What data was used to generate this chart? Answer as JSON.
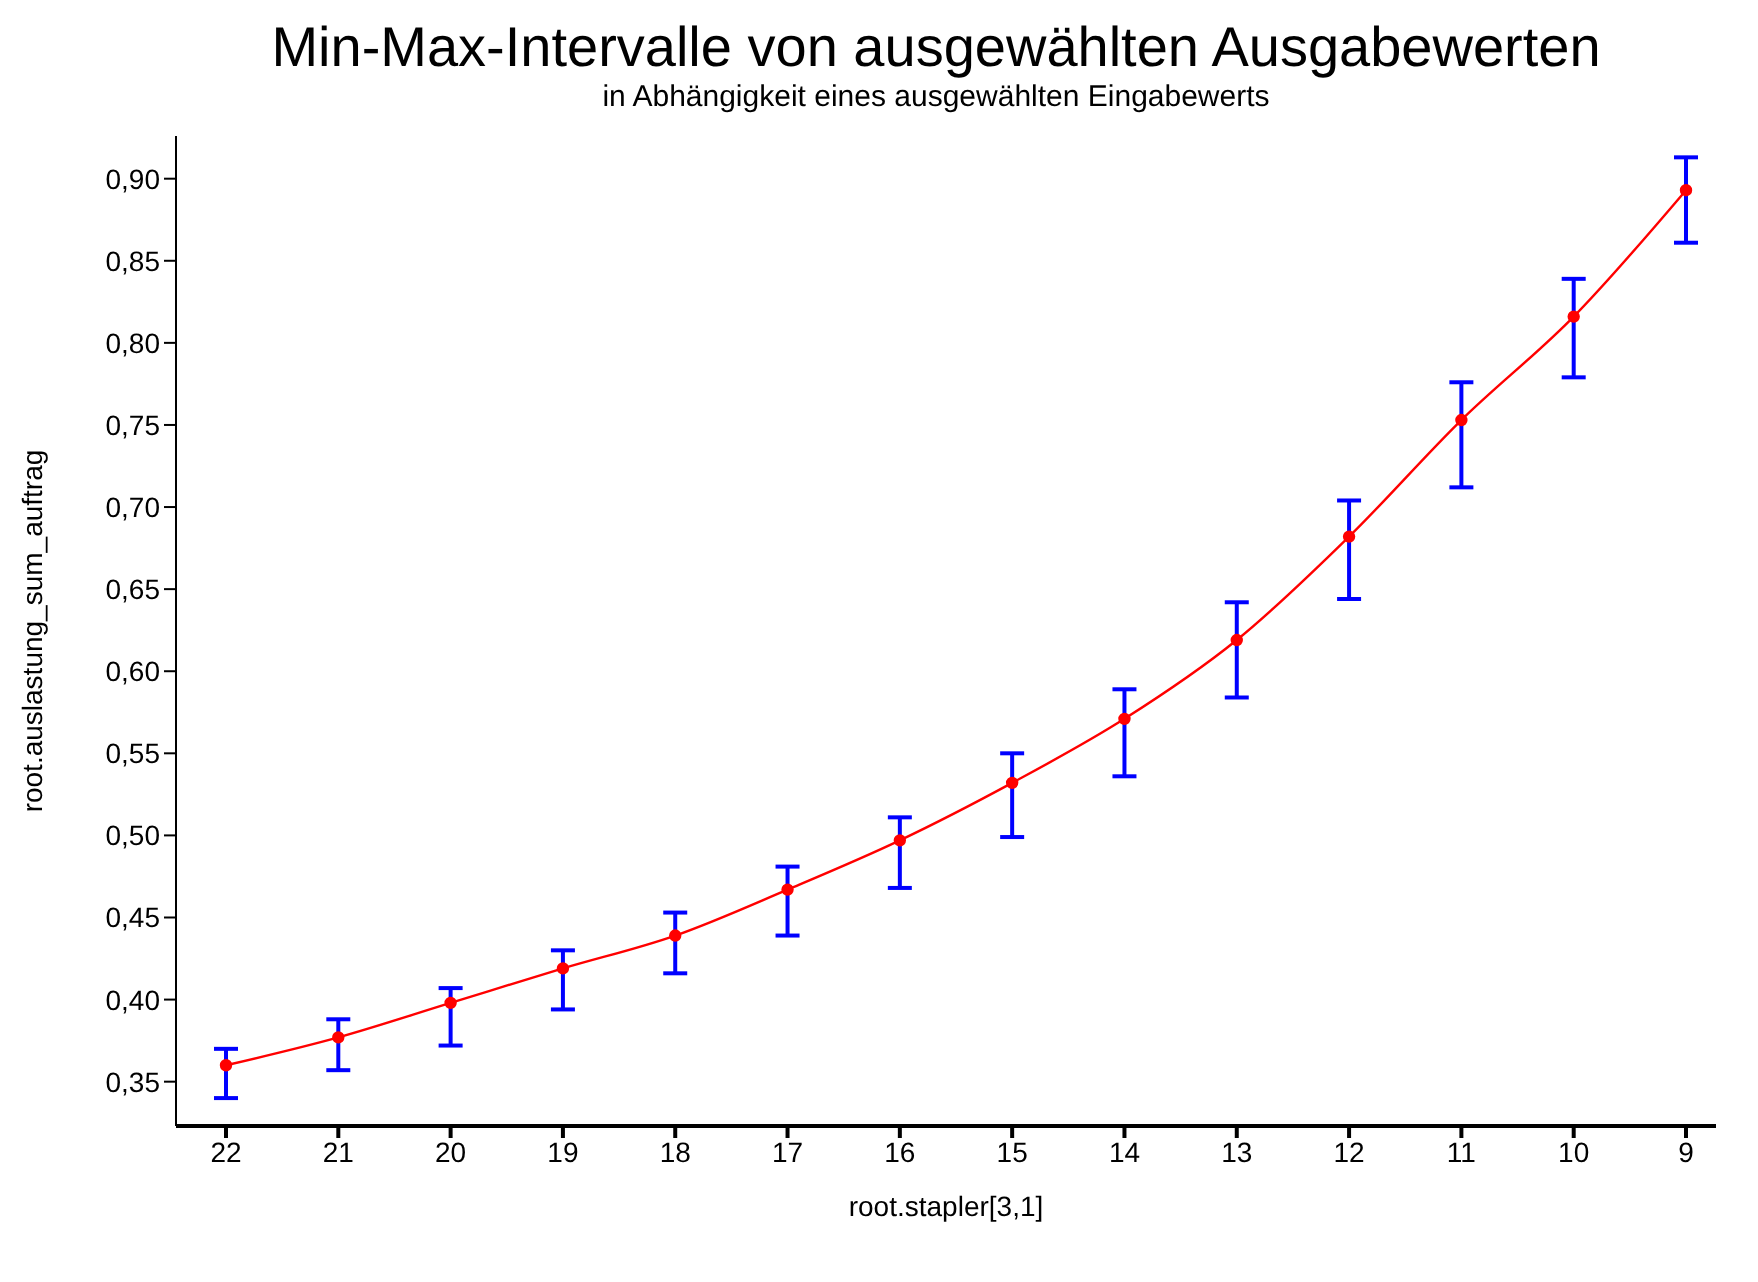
{
  "chart_data": {
    "type": "line",
    "title": "Min-Max-Intervalle von ausgewählten Ausgabewerten",
    "subtitle": "in Abhängigkeit eines ausgewählten Eingabewerts",
    "xlabel": "root.stapler[3,1]",
    "ylabel": "root.auslastung_sum_auftrag",
    "categories": [
      "22",
      "21",
      "20",
      "19",
      "18",
      "17",
      "16",
      "15",
      "14",
      "13",
      "12",
      "11",
      "10",
      "9"
    ],
    "series": [
      {
        "color": "#ff0000",
        "values": [
          0.36,
          0.377,
          0.398,
          0.419,
          0.439,
          0.467,
          0.497,
          0.532,
          0.571,
          0.619,
          0.682,
          0.753,
          0.816,
          0.893
        ],
        "errors": [
          [
            0.34,
            0.37
          ],
          [
            0.357,
            0.388
          ],
          [
            0.372,
            0.407
          ],
          [
            0.394,
            0.43
          ],
          [
            0.416,
            0.453
          ],
          [
            0.439,
            0.481
          ],
          [
            0.468,
            0.511
          ],
          [
            0.499,
            0.55
          ],
          [
            0.536,
            0.589
          ],
          [
            0.584,
            0.642
          ],
          [
            0.644,
            0.704
          ],
          [
            0.712,
            0.776
          ],
          [
            0.779,
            0.839
          ],
          [
            0.861,
            0.913
          ]
        ]
      }
    ],
    "ylim": [
      0.323,
      0.926
    ],
    "yticks": [
      {
        "value": 0.35,
        "label": "0,35"
      },
      {
        "value": 0.4,
        "label": "0,40"
      },
      {
        "value": 0.45,
        "label": "0,45"
      },
      {
        "value": 0.5,
        "label": "0,50"
      },
      {
        "value": 0.55,
        "label": "0,55"
      },
      {
        "value": 0.6,
        "label": "0,60"
      },
      {
        "value": 0.65,
        "label": "0,65"
      },
      {
        "value": 0.7,
        "label": "0,70"
      },
      {
        "value": 0.75,
        "label": "0,75"
      },
      {
        "value": 0.8,
        "label": "0,80"
      },
      {
        "value": 0.85,
        "label": "0,85"
      },
      {
        "value": 0.9,
        "label": "0,90"
      }
    ],
    "marker": "circle",
    "line_style": "solid",
    "grid": false,
    "legend": false
  }
}
